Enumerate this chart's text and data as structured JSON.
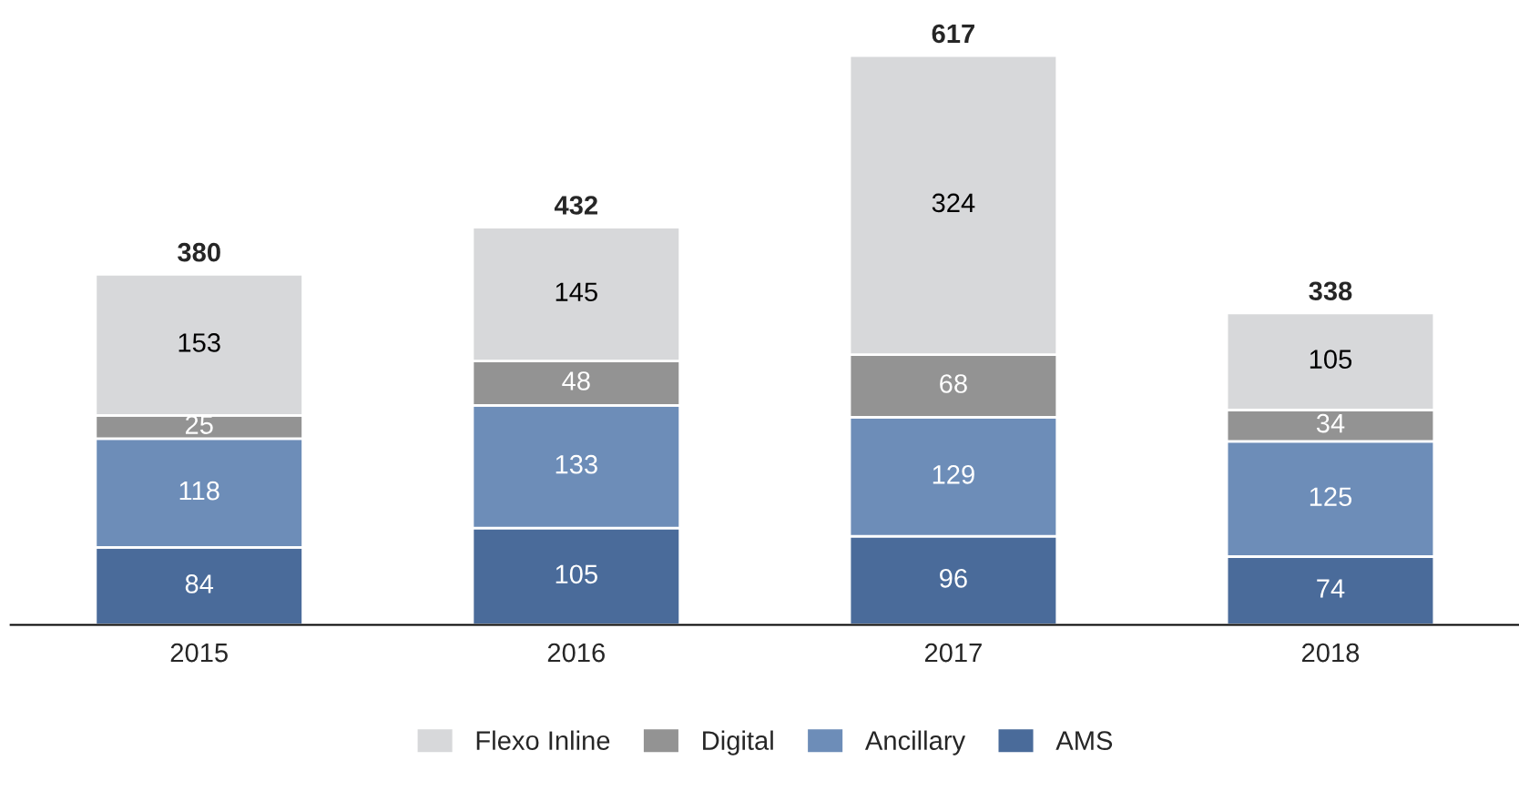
{
  "chart_data": {
    "type": "bar",
    "stacked": true,
    "data_labels": true,
    "legend": "bottom",
    "grid": false,
    "categories": [
      "2015",
      "2016",
      "2017",
      "2018"
    ],
    "series": [
      {
        "name": "AMS",
        "color": "#4a6b9a",
        "values": [
          84,
          105,
          96,
          74
        ]
      },
      {
        "name": "Ancillary",
        "color": "#6d8db8",
        "values": [
          118,
          133,
          129,
          125
        ]
      },
      {
        "name": "Digital",
        "color": "#939393",
        "values": [
          25,
          48,
          68,
          34
        ]
      },
      {
        "name": "Flexo Inline",
        "color": "#d7d8da",
        "values": [
          153,
          145,
          324,
          105
        ]
      }
    ],
    "totals": [
      "380",
      "432",
      "617",
      "338"
    ]
  }
}
